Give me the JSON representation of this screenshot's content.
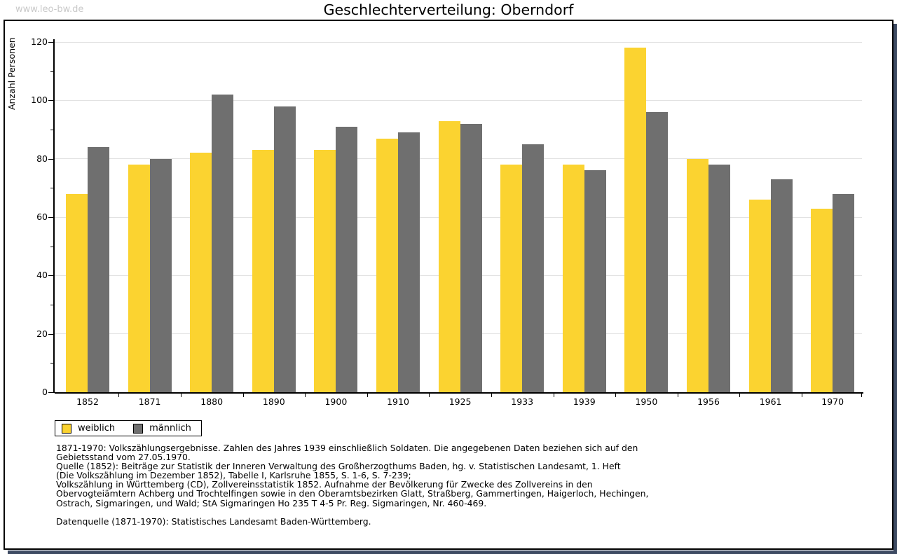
{
  "watermark": "www.leo-bw.de",
  "title": "Geschlechterverteilung: Oberndorf",
  "chart_data": {
    "type": "bar",
    "title": "Geschlechterverteilung: Oberndorf",
    "ylabel": "Anzahl Personen",
    "xlabel": "",
    "ylim": [
      0,
      120
    ],
    "ytick_step": 20,
    "y_minor_step": 10,
    "grid": true,
    "legend_position": "bottom-left",
    "categories": [
      "1852",
      "1871",
      "1880",
      "1890",
      "1900",
      "1910",
      "1925",
      "1933",
      "1939",
      "1950",
      "1956",
      "1961",
      "1970"
    ],
    "series": [
      {
        "name": "weiblich",
        "color": "#FBD330",
        "values": [
          68,
          78,
          82,
          83,
          83,
          87,
          93,
          78,
          78,
          118,
          80,
          66,
          63
        ]
      },
      {
        "name": "männlich",
        "color": "#6F6F6F",
        "values": [
          84,
          80,
          102,
          98,
          91,
          89,
          92,
          85,
          76,
          96,
          78,
          73,
          68
        ]
      }
    ]
  },
  "footer": {
    "footnotes": [
      "1871-1970: Volkszählungsergebnisse. Zahlen des Jahres 1939 einschließlich Soldaten. Die angegebenen Daten beziehen sich auf den",
      "Gebietsstand vom 27.05.1970.",
      "Quelle (1852): Beiträge zur Statistik der Inneren Verwaltung des Großherzogthums Baden, hg. v. Statistischen Landesamt, 1. Heft",
      "(Die Volkszählung im Dezember 1852), Tabelle I, Karlsruhe 1855, S. 1-6, S. 7-239;",
      "Volkszählung in Württemberg (CD), Zollvereinsstatistik 1852. Aufnahme der Bevölkerung für Zwecke des Zollvereins in den",
      "Obervogteiämtern Achberg und Trochtelfingen sowie in den Oberamtsbezirken Glatt, Straßberg, Gammertingen, Haigerloch, Hechingen,",
      "Ostrach, Sigmaringen, und Wald; StA Sigmaringen Ho 235 T 4-5 Pr. Reg. Sigmaringen, Nr. 460-469."
    ],
    "datasource": "Datenquelle (1871-1970): Statistisches Landesamt Baden-Württemberg."
  },
  "colors": {
    "female": "#FBD330",
    "male": "#6F6F6F",
    "grid": "#E2E2E2",
    "frame": "#000000",
    "watermark": "#C9C9C9",
    "shadow": "#3E4B63"
  }
}
